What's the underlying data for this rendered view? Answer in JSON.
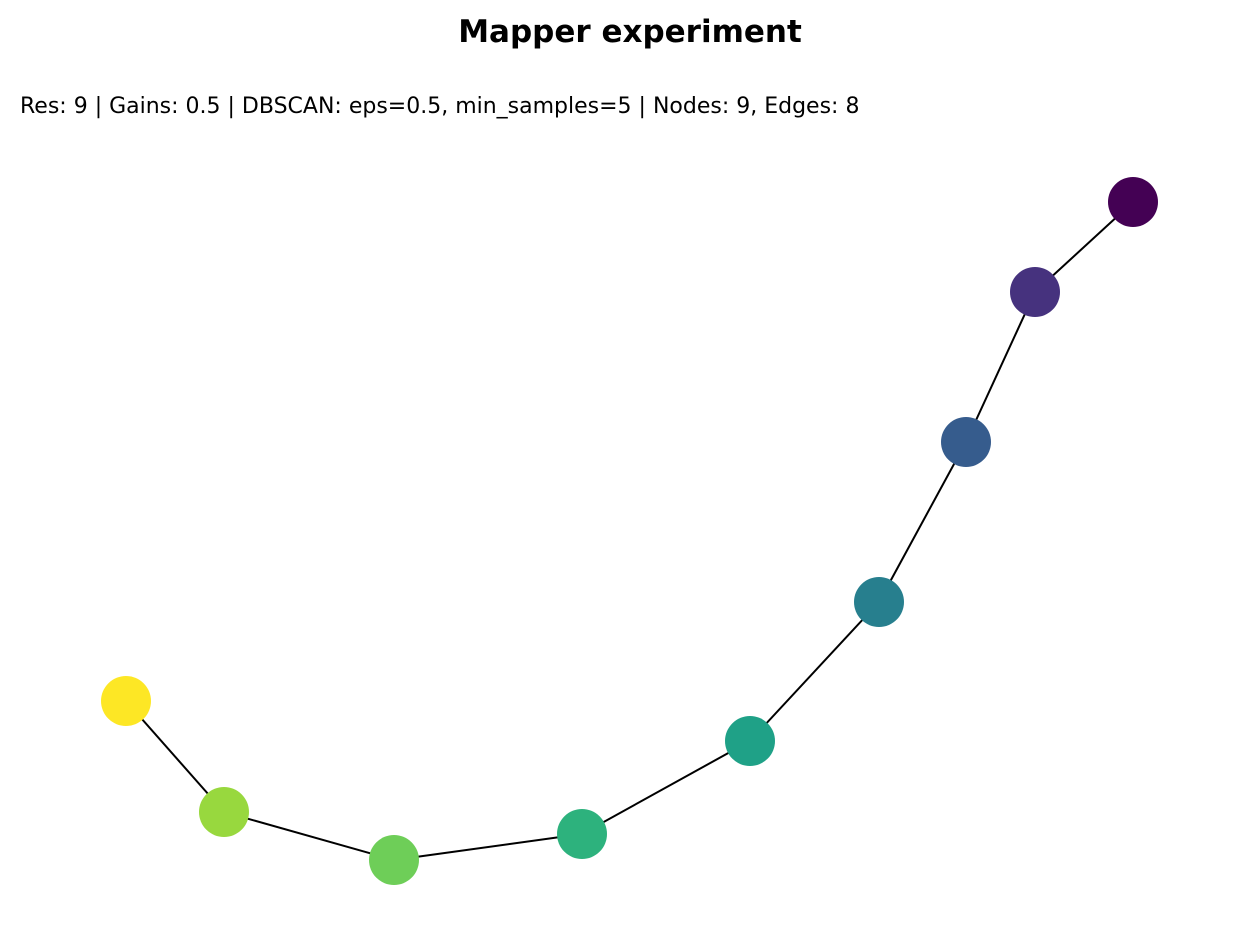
{
  "title": "Mapper experiment",
  "subtitle": "Res: 9 | Gains: 0.5 | DBSCAN: eps=0.5, min_samples=5 | Nodes: 9, Edges: 8",
  "graph": {
    "edge_color": "#000000",
    "nodes": [
      {
        "id": "n0",
        "color": "#440154"
      },
      {
        "id": "n1",
        "color": "#46327e"
      },
      {
        "id": "n2",
        "color": "#365c8d"
      },
      {
        "id": "n3",
        "color": "#277f8e"
      },
      {
        "id": "n4",
        "color": "#1fa187"
      },
      {
        "id": "n5",
        "color": "#2db27d"
      },
      {
        "id": "n6",
        "color": "#6ece58"
      },
      {
        "id": "n7",
        "color": "#98d83e"
      },
      {
        "id": "n8",
        "color": "#fde725"
      }
    ],
    "edges": [
      [
        "n0",
        "n1"
      ],
      [
        "n1",
        "n2"
      ],
      [
        "n2",
        "n3"
      ],
      [
        "n3",
        "n4"
      ],
      [
        "n4",
        "n5"
      ],
      [
        "n5",
        "n6"
      ],
      [
        "n6",
        "n7"
      ],
      [
        "n7",
        "n8"
      ]
    ]
  }
}
